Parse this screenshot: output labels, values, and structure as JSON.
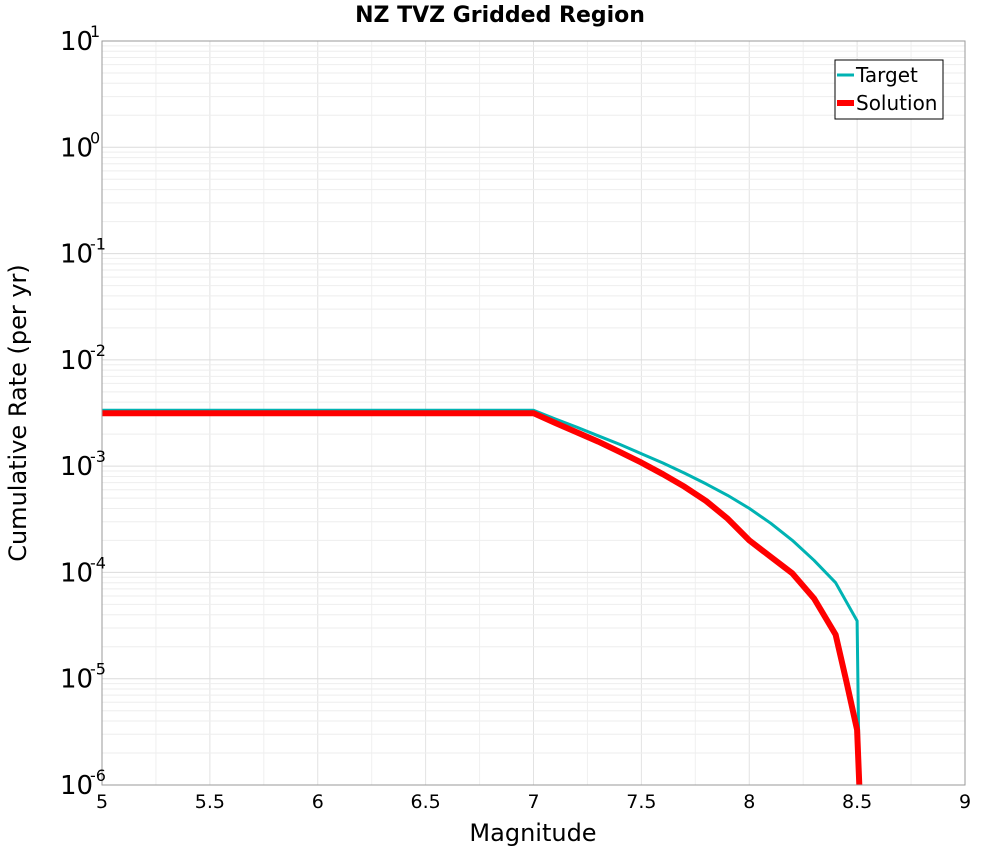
{
  "chart_data": {
    "type": "line",
    "title": "NZ TVZ Gridded Region",
    "xlabel": "Magnitude",
    "ylabel": "Cumulative Rate (per yr)",
    "xlim": [
      5,
      9
    ],
    "ylim": [
      1e-06,
      10
    ],
    "yscale": "log",
    "grid": true,
    "legend_position": "top-right",
    "x_ticks": [
      "5",
      "5.5",
      "6",
      "6.5",
      "7",
      "7.5",
      "8",
      "8.5",
      "9"
    ],
    "y_ticks": [
      {
        "base": "10",
        "exp": "1",
        "value": 10
      },
      {
        "base": "10",
        "exp": "0",
        "value": 1
      },
      {
        "base": "10",
        "exp": "-1",
        "value": 0.1
      },
      {
        "base": "10",
        "exp": "-2",
        "value": 0.01
      },
      {
        "base": "10",
        "exp": "-3",
        "value": 0.001
      },
      {
        "base": "10",
        "exp": "-4",
        "value": 0.0001
      },
      {
        "base": "10",
        "exp": "-5",
        "value": 1e-05
      },
      {
        "base": "10",
        "exp": "-6",
        "value": 1e-06
      }
    ],
    "series": [
      {
        "name": "Target",
        "color": "#00b3b3",
        "x": [
          5.0,
          7.0,
          7.1,
          7.2,
          7.3,
          7.4,
          7.5,
          7.6,
          7.7,
          7.8,
          7.9,
          8.0,
          8.1,
          8.2,
          8.3,
          8.4,
          8.5,
          8.51
        ],
        "y": [
          0.00335,
          0.00335,
          0.00278,
          0.00233,
          0.00193,
          0.0016,
          0.00131,
          0.00107,
          0.00086,
          0.00068,
          0.00053,
          0.0004,
          0.00029,
          0.0002,
          0.00013,
          8e-05,
          3.5e-05,
          1e-06
        ]
      },
      {
        "name": "Solution",
        "color": "#ff0000",
        "x": [
          5.0,
          7.0,
          7.1,
          7.2,
          7.3,
          7.4,
          7.5,
          7.6,
          7.7,
          7.8,
          7.9,
          8.0,
          8.1,
          8.2,
          8.3,
          8.4,
          8.45,
          8.5,
          8.51
        ],
        "y": [
          0.00315,
          0.00315,
          0.00255,
          0.00208,
          0.0017,
          0.00136,
          0.00108,
          0.00084,
          0.00064,
          0.00047,
          0.00032,
          0.0002,
          0.00014,
          9.8e-05,
          5.7e-05,
          2.6e-05,
          9.5e-06,
          3.3e-06,
          1e-06
        ]
      }
    ]
  }
}
